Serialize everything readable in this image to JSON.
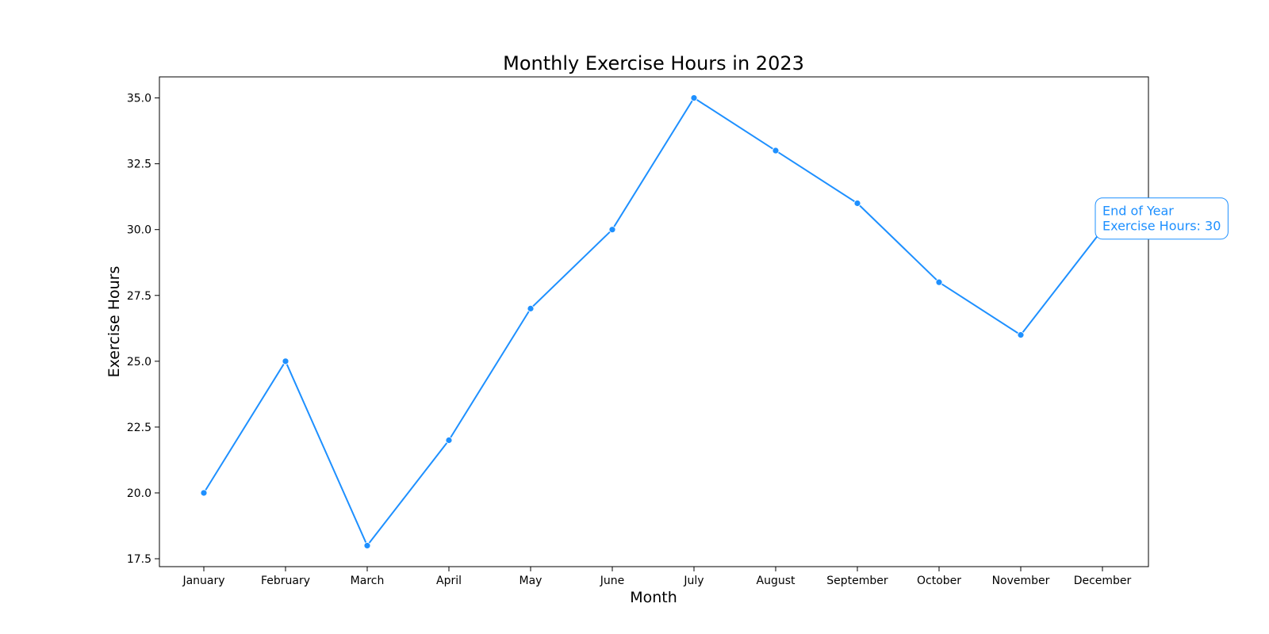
{
  "chart_data": {
    "type": "line",
    "title": "Monthly Exercise Hours in 2023",
    "xlabel": "Month",
    "ylabel": "Exercise Hours",
    "categories": [
      "January",
      "February",
      "March",
      "April",
      "May",
      "June",
      "July",
      "August",
      "September",
      "October",
      "November",
      "December"
    ],
    "series": [
      {
        "values": [
          20,
          25,
          18,
          22,
          27,
          30,
          35,
          33,
          31,
          28,
          26,
          30
        ],
        "color": "#1e90ff",
        "marker": "circle"
      }
    ],
    "ylim": [
      17.2,
      35.8
    ],
    "yticks": [
      "17.5",
      "20.0",
      "22.5",
      "25.0",
      "27.5",
      "30.0",
      "32.5",
      "35.0"
    ],
    "grid": false,
    "annotations": [
      {
        "category": "December",
        "value": 30,
        "lines": [
          "End of Year",
          "Exercise Hours: 30"
        ],
        "color": "#1e90ff"
      }
    ]
  }
}
